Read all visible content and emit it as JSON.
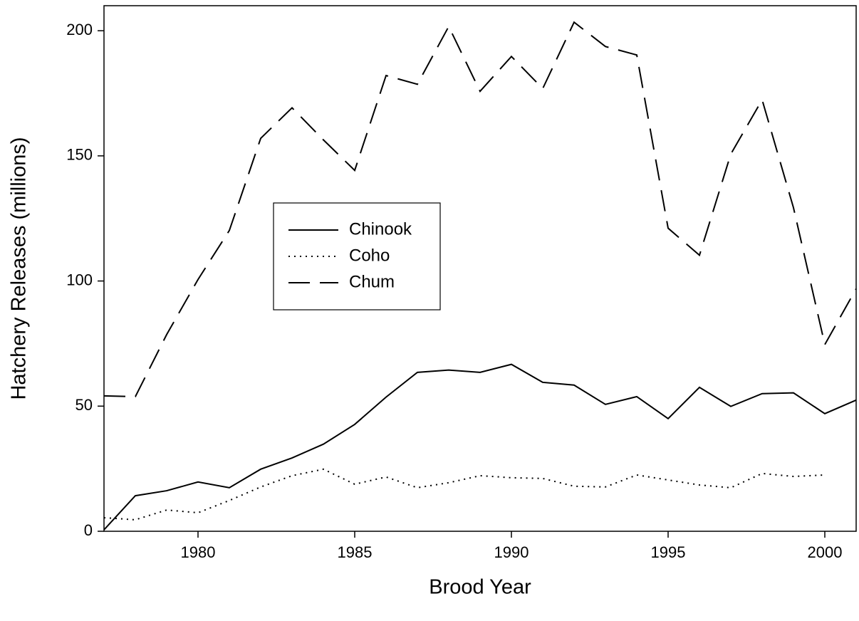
{
  "chart_data": {
    "type": "line",
    "xlabel": "Brood Year",
    "ylabel": "Hatchery Releases (millions)",
    "x": [
      1977,
      1978,
      1979,
      1980,
      1981,
      1982,
      1983,
      1984,
      1985,
      1986,
      1987,
      1988,
      1989,
      1990,
      1991,
      1992,
      1993,
      1994,
      1995,
      1996,
      1997,
      1998,
      1999,
      2000,
      2001
    ],
    "series": [
      {
        "name": "Chinook",
        "color": "#000000",
        "dash": "solid",
        "values": [
          0.6,
          14.2,
          16.2,
          19.7,
          17.4,
          24.8,
          29.3,
          34.8,
          42.7,
          53.6,
          63.5,
          64.4,
          63.5,
          66.7,
          59.5,
          58.4,
          50.7,
          53.8,
          45.0,
          57.5,
          49.9,
          55.0,
          55.3,
          47.0,
          52.4
        ]
      },
      {
        "name": "Coho",
        "color": "#000000",
        "dash": "dotted",
        "values": [
          5.4,
          4.6,
          8.5,
          7.4,
          12.3,
          17.7,
          22.2,
          24.8,
          18.8,
          21.7,
          17.4,
          19.4,
          22.2,
          21.4,
          21.1,
          18.0,
          17.7,
          22.5,
          20.5,
          18.5,
          17.4,
          23.1,
          21.9,
          22.5,
          null
        ]
      },
      {
        "name": "Chum",
        "color": "#000000",
        "dash": "dashed",
        "values": [
          54.1,
          53.8,
          78.6,
          100.6,
          120.2,
          157.0,
          169.2,
          156.4,
          144.2,
          182.1,
          178.6,
          201.7,
          175.8,
          189.7,
          176.9,
          203.4,
          193.7,
          190.3,
          121.1,
          110.3,
          150.7,
          172.4,
          129.3,
          74.6,
          96.9
        ]
      }
    ],
    "xlim": [
      1977,
      2001
    ],
    "xticks": [
      1980,
      1985,
      1990,
      1995,
      2000
    ],
    "ylim": [
      0,
      210
    ],
    "yticks": [
      0,
      50,
      100,
      150,
      200
    ],
    "grid": false
  }
}
